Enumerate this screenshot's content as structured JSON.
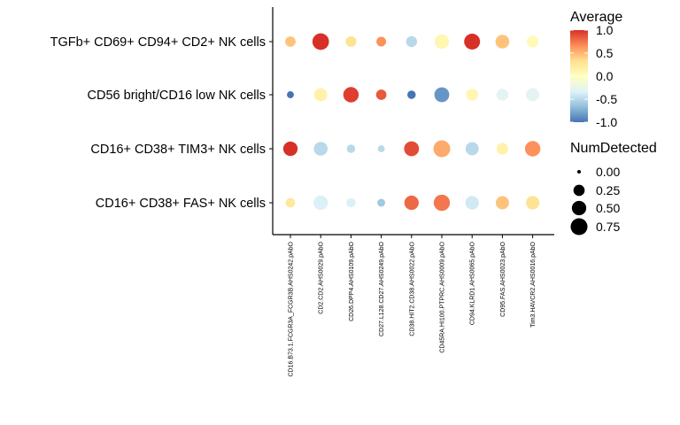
{
  "chart_data": {
    "type": "dotplot",
    "rows": [
      "TGFb+ CD69+ CD94+ CD2+ NK cells",
      "CD56 bright/CD16 low NK cells",
      "CD16+ CD38+ TIM3+ NK cells",
      "CD16+ CD38+ FAS+ NK cells"
    ],
    "columns": [
      "CD16.B73.1.FCGR3A_FCGR3B.AHS0242.pAbO",
      "CD2.CD2.AHS0029.pAbO",
      "CD26.DPP4.AHS0109.pAbO",
      "CD27.L128.CD27.AHS0249.pAbO",
      "CD38.HIT2.CD38.AHS0022.pAbO",
      "CD45RA.HI100.PTPRC.AHS0009.pAbO",
      "CD94.KLRD1.AHS0065.pAbO",
      "CD95.FAS.AHS0023.pAbO",
      "Tim3.HAVCR2.AHS0016.pAbO"
    ],
    "average": [
      [
        0.45,
        1.0,
        0.3,
        0.65,
        -0.5,
        0.1,
        1.0,
        0.45,
        0.05
      ],
      [
        -1.0,
        0.15,
        0.95,
        0.85,
        -1.0,
        -0.85,
        0.1,
        -0.3,
        -0.3
      ],
      [
        1.0,
        -0.5,
        -0.5,
        -0.5,
        0.9,
        0.55,
        -0.5,
        0.15,
        0.65
      ],
      [
        0.25,
        -0.35,
        -0.35,
        -0.6,
        0.8,
        0.75,
        -0.4,
        0.45,
        0.3
      ]
    ],
    "num_detected": [
      [
        0.2,
        0.72,
        0.22,
        0.16,
        0.24,
        0.5,
        0.65,
        0.45,
        0.3
      ],
      [
        0.05,
        0.4,
        0.6,
        0.2,
        0.1,
        0.55,
        0.3,
        0.3,
        0.4
      ],
      [
        0.5,
        0.45,
        0.1,
        0.05,
        0.55,
        0.75,
        0.4,
        0.28,
        0.6
      ],
      [
        0.15,
        0.5,
        0.14,
        0.08,
        0.5,
        0.68,
        0.42,
        0.4,
        0.42
      ]
    ],
    "color_legend": {
      "title": "Average",
      "ticks": [
        "1.0",
        "0.5",
        "0.0",
        "-0.5",
        "-1.0"
      ],
      "tick_values": [
        1.0,
        0.5,
        0.0,
        -0.5,
        -1.0
      ],
      "range": [
        -1.0,
        1.0
      ],
      "palette": [
        "#4575b4",
        "#91bfdb",
        "#e0f3f8",
        "#ffffbf",
        "#fee090",
        "#fc8d59",
        "#d73027"
      ]
    },
    "size_legend": {
      "title": "NumDetected",
      "labels": [
        "0.00",
        "0.25",
        "0.50",
        "0.75"
      ],
      "values": [
        0.0,
        0.25,
        0.5,
        0.75
      ]
    }
  }
}
